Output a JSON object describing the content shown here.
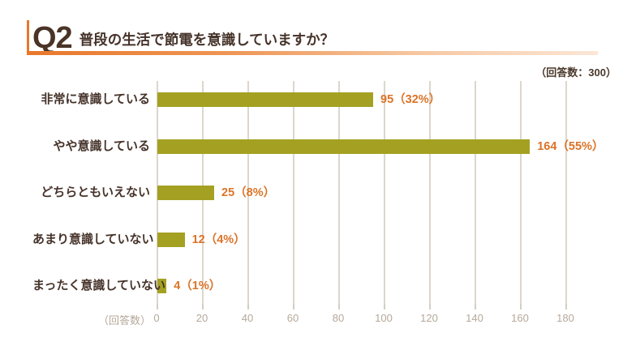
{
  "header": {
    "question_number": "Q2",
    "title": "普段の生活で節電を意識していますか？",
    "response_count_note": "（回答数：300）"
  },
  "colors": {
    "accent_orange": "#e8782a",
    "underline_gradient_end": "#fbe6d6",
    "bar_olive": "#a4a122",
    "value_text_orange": "#dc7327",
    "dark_brown_text": "#46332a",
    "gridline": "#dcd6cc",
    "axis_text": "#b5a89a"
  },
  "chart_data": {
    "type": "bar",
    "orientation": "horizontal",
    "title": "Q2 普段の生活で節電を意識していますか？",
    "subtitle": "（回答数：300）",
    "categories": [
      "非常に意識している",
      "やや意識している",
      "どちらともいえない",
      "あまり意識していない",
      "まったく意識していない"
    ],
    "values": [
      95,
      164,
      25,
      12,
      4
    ],
    "percents": [
      32,
      55,
      8,
      4,
      1
    ],
    "value_labels": [
      "95（32%）",
      "164（55%）",
      "25（8%）",
      "12（4%）",
      "4（1%）"
    ],
    "x_ticks": [
      0,
      20,
      40,
      60,
      80,
      100,
      120,
      140,
      160,
      180
    ],
    "xlim": [
      0,
      180
    ],
    "xlabel": "（回答数）",
    "grid": true,
    "legend": false,
    "total_responses": 300
  }
}
